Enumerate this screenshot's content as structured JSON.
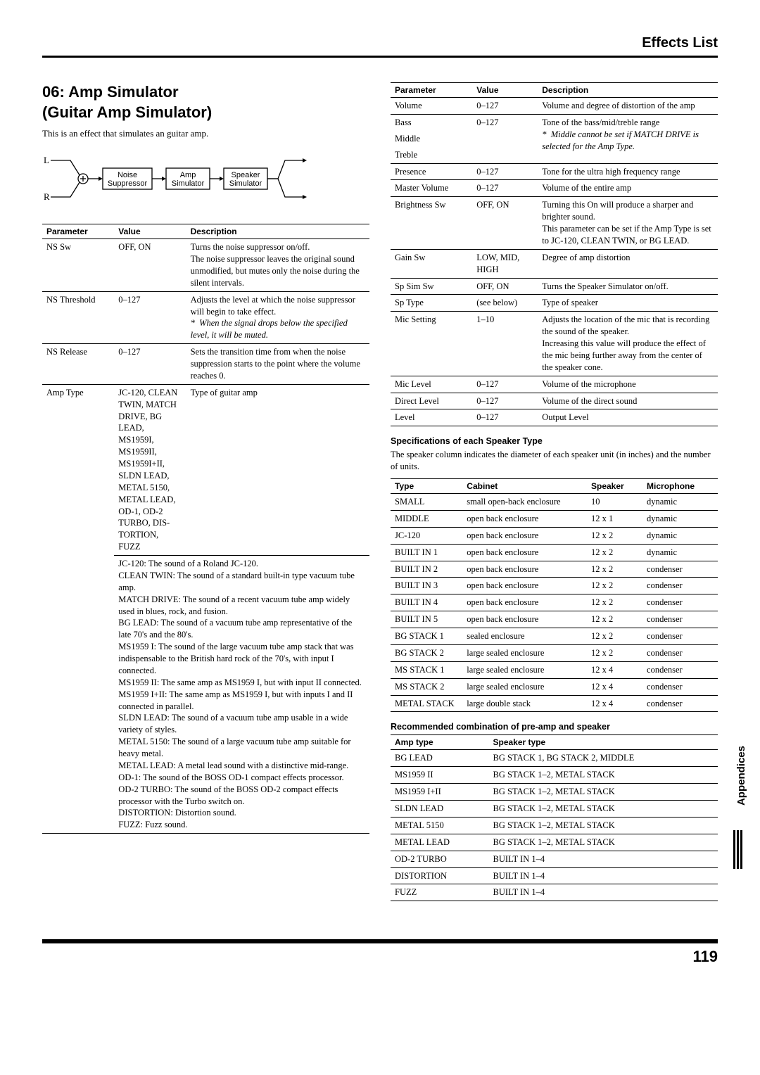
{
  "header": {
    "title": "Effects List"
  },
  "section": {
    "heading_l1": "06: Amp Simulator",
    "heading_l2": "(Guitar Amp Simulator)",
    "intro": "This is an effect that simulates an guitar amp."
  },
  "diagram": {
    "left_top": "L",
    "left_bottom": "R",
    "boxes": [
      "Noise\nSuppressor",
      "Amp\nSimulator",
      "Speaker\nSimulator"
    ]
  },
  "left_table": {
    "headers": [
      "Parameter",
      "Value",
      "Description"
    ],
    "rows": [
      {
        "p": "NS Sw",
        "v": "OFF, ON",
        "d": "Turns the noise suppressor on/off.\nThe noise suppressor leaves the original sound unmodified, but mutes only the noise during the silent intervals."
      },
      {
        "p": "NS Threshold",
        "v": "0–127",
        "d": "Adjusts the level at which the noise suppressor will begin to take effect.",
        "note": "When the signal drops below the specified level, it will be muted."
      },
      {
        "p": "NS Release",
        "v": "0–127",
        "d": "Sets the transition time from when the noise suppression starts to the point where the volume reaches 0."
      },
      {
        "p": "Amp Type",
        "v": "JC-120, CLEAN TWIN, MATCH DRIVE, BG LEAD, MS1959I, MS1959II, MS1959I+II, SLDN LEAD, METAL 5150, METAL LEAD, OD-1, OD-2 TURBO, DISTORTION, FUZZ",
        "d": "Type of guitar amp"
      }
    ],
    "amp_desc": [
      "JC-120: The sound of a Roland JC-120.",
      "CLEAN TWIN: The sound of a standard built-in type vacuum tube amp.",
      "MATCH DRIVE: The sound of a recent vacuum tube amp widely used in blues, rock, and fusion.",
      "BG LEAD: The sound of a vacuum tube amp representative of the late 70's and the 80's.",
      "MS1959 I: The sound of the large vacuum tube amp stack that was indispensable to the British hard rock of the 70's, with input I connected.",
      "MS1959 II: The same amp as MS1959 I, but with input II connected.",
      "MS1959 I+II: The same amp as MS1959 I, but with inputs I and II connected in parallel.",
      "SLDN LEAD: The sound of a vacuum tube amp usable in a wide variety of styles.",
      "METAL 5150: The sound of a large vacuum tube amp suitable for heavy metal.",
      "METAL LEAD: A metal lead sound with a distinctive mid-range.",
      "OD-1: The sound of the BOSS OD-1 compact effects processor.",
      "OD-2 TURBO: The sound of the BOSS OD-2 compact effects processor with the Turbo switch on.",
      "DISTORTION: Distortion sound.",
      "FUZZ: Fuzz sound."
    ]
  },
  "right_table": {
    "headers": [
      "Parameter",
      "Value",
      "Description"
    ],
    "rows": [
      {
        "p": "Volume",
        "v": "0–127",
        "d": "Volume and degree of distortion of the amp"
      },
      {
        "p": "Bass",
        "v": "0–127",
        "d": "Tone of the bass/mid/treble range",
        "group": true
      },
      {
        "p": "Middle",
        "v": "",
        "d": "",
        "group": true,
        "note": "Middle cannot be set if MATCH DRIVE is selected for the Amp Type."
      },
      {
        "p": "Treble",
        "v": "",
        "d": "",
        "group": true,
        "last": true
      },
      {
        "p": "Presence",
        "v": "0–127",
        "d": "Tone for the ultra high frequency range"
      },
      {
        "p": "Master Volume",
        "v": "0–127",
        "d": "Volume of the entire amp"
      },
      {
        "p": "Brightness Sw",
        "v": "OFF, ON",
        "d": "Turning this On will produce a sharper and brighter sound.\nThis parameter can be set if the Amp Type is set to JC-120, CLEAN TWIN, or BG LEAD."
      },
      {
        "p": "Gain Sw",
        "v": "LOW, MID, HIGH",
        "d": "Degree of amp distortion"
      },
      {
        "p": "Sp Sim Sw",
        "v": "OFF, ON",
        "d": "Turns the Speaker Simulator on/off."
      },
      {
        "p": "Sp Type",
        "v": "(see below)",
        "d": "Type of speaker"
      },
      {
        "p": "Mic Setting",
        "v": "1–10",
        "d": "Adjusts the location of the mic that is recording the sound of the speaker.\nIncreasing this value will produce the effect of the mic being further away from the center of the speaker cone."
      },
      {
        "p": "Mic Level",
        "v": "0–127",
        "d": "Volume of the microphone"
      },
      {
        "p": "Direct Level",
        "v": "0–127",
        "d": "Volume of the direct sound"
      },
      {
        "p": "Level",
        "v": "0–127",
        "d": "Output Level"
      }
    ]
  },
  "speaker_spec": {
    "heading": "Specifications of each Speaker Type",
    "text": "The speaker column indicates the diameter of each speaker unit (in inches) and the number of units.",
    "headers": [
      "Type",
      "Cabinet",
      "Speaker",
      "Microphone"
    ],
    "rows": [
      [
        "SMALL",
        "small open-back enclosure",
        "10",
        "dynamic"
      ],
      [
        "MIDDLE",
        "open back enclosure",
        "12 x 1",
        "dynamic"
      ],
      [
        "JC-120",
        "open back enclosure",
        "12 x 2",
        "dynamic"
      ],
      [
        "BUILT IN 1",
        "open back enclosure",
        "12 x 2",
        "dynamic"
      ],
      [
        "BUILT IN 2",
        "open back enclosure",
        "12 x 2",
        "condenser"
      ],
      [
        "BUILT IN 3",
        "open back enclosure",
        "12 x 2",
        "condenser"
      ],
      [
        "BUILT IN 4",
        "open back enclosure",
        "12 x 2",
        "condenser"
      ],
      [
        "BUILT IN 5",
        "open back enclosure",
        "12 x 2",
        "condenser"
      ],
      [
        "BG STACK 1",
        "sealed enclosure",
        "12 x 2",
        "condenser"
      ],
      [
        "BG STACK 2",
        "large sealed enclosure",
        "12 x 2",
        "condenser"
      ],
      [
        "MS STACK 1",
        "large sealed enclosure",
        "12 x 4",
        "condenser"
      ],
      [
        "MS STACK 2",
        "large sealed enclosure",
        "12 x 4",
        "condenser"
      ],
      [
        "METAL STACK",
        "large double stack",
        "12 x 4",
        "condenser"
      ]
    ]
  },
  "combo": {
    "heading": "Recommended combination of pre-amp and speaker",
    "headers": [
      "Amp type",
      "Speaker type"
    ],
    "rows": [
      [
        "BG LEAD",
        "BG STACK 1, BG STACK 2, MIDDLE"
      ],
      [
        "MS1959 II",
        "BG STACK 1–2, METAL STACK"
      ],
      [
        "MS1959 I+II",
        "BG STACK 1–2, METAL STACK"
      ],
      [
        "SLDN LEAD",
        "BG STACK 1–2, METAL STACK"
      ],
      [
        "METAL 5150",
        "BG STACK 1–2, METAL STACK"
      ],
      [
        "METAL LEAD",
        "BG STACK 1–2, METAL STACK"
      ],
      [
        "OD-2 TURBO",
        "BUILT IN 1–4"
      ],
      [
        "DISTORTION",
        "BUILT IN 1–4"
      ],
      [
        "FUZZ",
        "BUILT IN 1–4"
      ]
    ]
  },
  "side_tab": "Appendices",
  "page_number": "119"
}
